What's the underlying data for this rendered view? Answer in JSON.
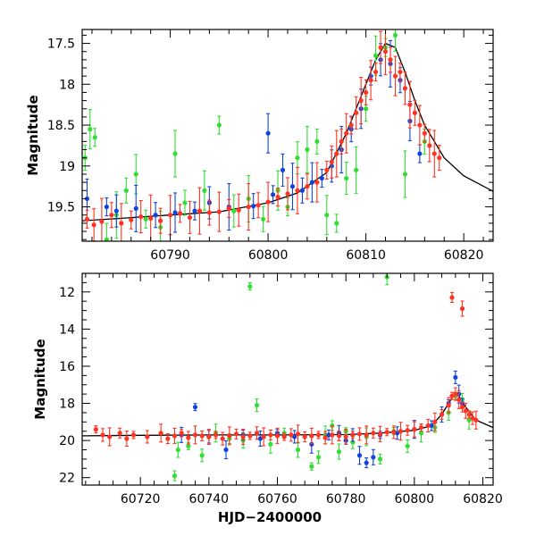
{
  "chart_data": [
    {
      "id": "top",
      "type": "scatter",
      "xlim": [
        60781,
        60823
      ],
      "ylim": [
        19.92,
        17.33
      ],
      "y_inverted": true,
      "ylabel": "Magnitude",
      "xlabel": "",
      "xticks": [
        60790,
        60800,
        60810,
        60820
      ],
      "yticks": [
        17.5,
        18,
        18.5,
        19,
        19.5
      ],
      "grid": false,
      "model_curve": [
        [
          60781,
          19.67
        ],
        [
          60785,
          19.64
        ],
        [
          60790,
          19.6
        ],
        [
          60795,
          19.56
        ],
        [
          60800,
          19.45
        ],
        [
          60803,
          19.33
        ],
        [
          60806,
          19.08
        ],
        [
          60808,
          18.6
        ],
        [
          60810,
          18.0
        ],
        [
          60811,
          17.7
        ],
        [
          60812,
          17.5
        ],
        [
          60813,
          17.55
        ],
        [
          60814,
          17.85
        ],
        [
          60815,
          18.2
        ],
        [
          60816,
          18.5
        ],
        [
          60818,
          18.9
        ],
        [
          60820,
          19.12
        ],
        [
          60823,
          19.31
        ]
      ],
      "series": [
        {
          "color": "#ff3322",
          "points": [
            [
              60781.5,
              19.65
            ],
            [
              60782.2,
              19.72
            ],
            [
              60783.0,
              19.68
            ],
            [
              60784.0,
              19.6
            ],
            [
              60785.0,
              19.7
            ],
            [
              60786.0,
              19.66
            ],
            [
              60787.0,
              19.62
            ],
            [
              60788.0,
              19.64
            ],
            [
              60789.0,
              19.67
            ],
            [
              60790.0,
              19.6
            ],
            [
              60791.0,
              19.58
            ],
            [
              60792.0,
              19.63
            ],
            [
              60793.0,
              19.55
            ],
            [
              60794.0,
              19.57
            ],
            [
              60795.0,
              19.56
            ],
            [
              60796.0,
              19.52
            ],
            [
              60797.0,
              19.54
            ],
            [
              60798.0,
              19.5
            ],
            [
              60799.0,
              19.48
            ],
            [
              60800.0,
              19.44
            ],
            [
              60801.0,
              19.38
            ],
            [
              60802.0,
              19.34
            ],
            [
              60803.0,
              19.3
            ],
            [
              60804.0,
              19.25
            ],
            [
              60805.0,
              19.2
            ],
            [
              60806.0,
              19.05
            ],
            [
              60806.5,
              18.95
            ],
            [
              60807.0,
              18.85
            ],
            [
              60807.5,
              18.7
            ],
            [
              60808.0,
              18.6
            ],
            [
              60808.5,
              18.5
            ],
            [
              60809.0,
              18.35
            ],
            [
              60809.5,
              18.2
            ],
            [
              60810.0,
              18.1
            ],
            [
              60810.5,
              17.95
            ],
            [
              60811.0,
              17.85
            ],
            [
              60811.5,
              17.55
            ],
            [
              60812.0,
              17.6
            ],
            [
              60812.5,
              17.7
            ],
            [
              60813.0,
              17.9
            ],
            [
              60813.5,
              17.85
            ],
            [
              60814.0,
              18.05
            ],
            [
              60814.5,
              18.25
            ],
            [
              60815.0,
              18.35
            ],
            [
              60815.5,
              18.5
            ],
            [
              60816.0,
              18.6
            ],
            [
              60816.5,
              18.75
            ],
            [
              60817.0,
              18.85
            ],
            [
              60817.5,
              18.9
            ]
          ]
        },
        {
          "color": "#1144dd",
          "points": [
            [
              60781.5,
              19.4
            ],
            [
              60783.5,
              19.5
            ],
            [
              60784.5,
              19.55
            ],
            [
              60786.5,
              19.52
            ],
            [
              60788.5,
              19.6
            ],
            [
              60790.5,
              19.57
            ],
            [
              60792.5,
              19.55
            ],
            [
              60794.0,
              19.45
            ],
            [
              60796.0,
              19.5
            ],
            [
              60798.5,
              19.49
            ],
            [
              60800.0,
              18.6
            ],
            [
              60800.5,
              19.35
            ],
            [
              60801.5,
              19.05
            ],
            [
              60802.5,
              19.25
            ],
            [
              60803.5,
              19.3
            ],
            [
              60804.5,
              19.2
            ],
            [
              60805.5,
              19.15
            ],
            [
              60806.5,
              19.0
            ],
            [
              60807.5,
              18.8
            ],
            [
              60808.5,
              18.55
            ],
            [
              60809.5,
              18.3
            ],
            [
              60810.5,
              17.9
            ],
            [
              60811.5,
              17.7
            ],
            [
              60812.5,
              17.75
            ],
            [
              60813.5,
              17.95
            ],
            [
              60814.5,
              18.45
            ],
            [
              60815.5,
              18.85
            ]
          ]
        },
        {
          "color": "#33dd33",
          "points": [
            [
              60781.3,
              18.9
            ],
            [
              60781.8,
              18.55
            ],
            [
              60782.3,
              18.65
            ],
            [
              60783.5,
              19.9
            ],
            [
              60784.5,
              19.6
            ],
            [
              60785.5,
              19.3
            ],
            [
              60786.5,
              19.1
            ],
            [
              60787.5,
              19.65
            ],
            [
              60789.0,
              19.75
            ],
            [
              60790.5,
              18.85
            ],
            [
              60791.5,
              19.45
            ],
            [
              60793.5,
              19.3
            ],
            [
              60795.0,
              18.5
            ],
            [
              60796.5,
              19.55
            ],
            [
              60798.0,
              19.4
            ],
            [
              60799.5,
              19.65
            ],
            [
              60801.0,
              19.3
            ],
            [
              60802.0,
              19.5
            ],
            [
              60803.0,
              18.9
            ],
            [
              60804.0,
              18.8
            ],
            [
              60805.0,
              18.7
            ],
            [
              60806.0,
              19.6
            ],
            [
              60807.0,
              19.7
            ],
            [
              60808.0,
              19.15
            ],
            [
              60809.0,
              19.05
            ],
            [
              60810.0,
              18.3
            ],
            [
              60811.0,
              17.65
            ],
            [
              60812.0,
              17.55
            ],
            [
              60813.0,
              17.4
            ],
            [
              60814.0,
              19.1
            ],
            [
              60816.0,
              18.7
            ]
          ]
        }
      ]
    },
    {
      "id": "bottom",
      "type": "scatter",
      "xlim": [
        60703,
        60823
      ],
      "ylim": [
        22.4,
        11
      ],
      "y_inverted": true,
      "ylabel": "Magnitude",
      "xlabel": "HJD−2400000",
      "xticks": [
        60720,
        60740,
        60760,
        60780,
        60800,
        60820
      ],
      "yticks": [
        12,
        14,
        16,
        18,
        20,
        22
      ],
      "grid": false,
      "model_curve": [
        [
          60703,
          19.75
        ],
        [
          60720,
          19.72
        ],
        [
          60740,
          19.7
        ],
        [
          60760,
          19.7
        ],
        [
          60780,
          19.68
        ],
        [
          60790,
          19.6
        ],
        [
          60800,
          19.45
        ],
        [
          60805,
          19.2
        ],
        [
          60808,
          18.6
        ],
        [
          60811,
          17.7
        ],
        [
          60812,
          17.5
        ],
        [
          60813,
          17.6
        ],
        [
          60815,
          18.2
        ],
        [
          60818,
          18.9
        ],
        [
          60823,
          19.3
        ]
      ],
      "series": [
        {
          "color": "#ff3322",
          "points": [
            [
              60707,
              19.4
            ],
            [
              60709,
              19.7
            ],
            [
              60711,
              19.8
            ],
            [
              60714,
              19.6
            ],
            [
              60716,
              19.9
            ],
            [
              60718,
              19.7
            ],
            [
              60722,
              19.8
            ],
            [
              60726,
              19.6
            ],
            [
              60728,
              19.9
            ],
            [
              60730,
              19.75
            ],
            [
              60732,
              19.6
            ],
            [
              60734,
              19.85
            ],
            [
              60736,
              19.7
            ],
            [
              60738,
              19.75
            ],
            [
              60740,
              19.8
            ],
            [
              60742,
              19.7
            ],
            [
              60744,
              19.9
            ],
            [
              60746,
              19.75
            ],
            [
              60748,
              19.65
            ],
            [
              60750,
              19.8
            ],
            [
              60752,
              19.75
            ],
            [
              60754,
              19.6
            ],
            [
              60756,
              19.8
            ],
            [
              60758,
              19.7
            ],
            [
              60760,
              19.75
            ],
            [
              60762,
              19.8
            ],
            [
              60764,
              19.7
            ],
            [
              60766,
              19.65
            ],
            [
              60768,
              19.8
            ],
            [
              60770,
              19.75
            ],
            [
              60772,
              19.7
            ],
            [
              60774,
              19.85
            ],
            [
              60776,
              19.7
            ],
            [
              60778,
              19.75
            ],
            [
              60780,
              19.8
            ],
            [
              60782,
              19.7
            ],
            [
              60784,
              19.65
            ],
            [
              60786,
              19.7
            ],
            [
              60788,
              19.6
            ],
            [
              60790,
              19.65
            ],
            [
              60792,
              19.55
            ],
            [
              60794,
              19.55
            ],
            [
              60796,
              19.5
            ],
            [
              60798,
              19.45
            ],
            [
              60800,
              19.4
            ],
            [
              60802,
              19.3
            ],
            [
              60804,
              19.2
            ],
            [
              60806,
              19.0
            ],
            [
              60808,
              18.6
            ],
            [
              60810,
              18.1
            ],
            [
              60811,
              17.6
            ],
            [
              60812,
              17.5
            ],
            [
              60813,
              17.8
            ],
            [
              60814,
              18.2
            ],
            [
              60815,
              18.4
            ],
            [
              60816,
              18.6
            ],
            [
              60817,
              18.8
            ],
            [
              60818,
              18.9
            ],
            [
              60811,
              12.3
            ],
            [
              60814,
              12.9
            ]
          ]
        },
        {
          "color": "#1144dd",
          "points": [
            [
              60732,
              19.7
            ],
            [
              60736,
              18.2
            ],
            [
              60740,
              19.8
            ],
            [
              60745,
              20.5
            ],
            [
              60750,
              19.7
            ],
            [
              60755,
              19.9
            ],
            [
              60760,
              19.6
            ],
            [
              60765,
              19.8
            ],
            [
              60770,
              20.2
            ],
            [
              60775,
              19.7
            ],
            [
              60778,
              19.6
            ],
            [
              60780,
              20.0
            ],
            [
              60782,
              19.7
            ],
            [
              60784,
              20.8
            ],
            [
              60786,
              21.2
            ],
            [
              60788,
              20.9
            ],
            [
              60790,
              19.7
            ],
            [
              60795,
              19.6
            ],
            [
              60800,
              19.4
            ],
            [
              60805,
              19.2
            ],
            [
              60808,
              18.6
            ],
            [
              60810,
              18.0
            ],
            [
              60812,
              16.6
            ],
            [
              60813,
              17.5
            ],
            [
              60814,
              18.0
            ]
          ]
        },
        {
          "color": "#33dd33",
          "points": [
            [
              60730,
              21.9
            ],
            [
              60731,
              20.5
            ],
            [
              60734,
              20.3
            ],
            [
              60738,
              20.8
            ],
            [
              60742,
              19.6
            ],
            [
              60746,
              19.9
            ],
            [
              60750,
              20.0
            ],
            [
              60752,
              11.7
            ],
            [
              60754,
              18.1
            ],
            [
              60758,
              20.2
            ],
            [
              60762,
              19.6
            ],
            [
              60766,
              20.5
            ],
            [
              60770,
              21.4
            ],
            [
              60772,
              20.9
            ],
            [
              60774,
              19.7
            ],
            [
              60776,
              19.2
            ],
            [
              60778,
              20.6
            ],
            [
              60780,
              19.5
            ],
            [
              60782,
              20.1
            ],
            [
              60786,
              19.8
            ],
            [
              60790,
              21.0
            ],
            [
              60792,
              11.2
            ],
            [
              60794,
              19.5
            ],
            [
              60798,
              20.3
            ],
            [
              60802,
              19.6
            ],
            [
              60806,
              19.3
            ],
            [
              60810,
              18.5
            ],
            [
              60812,
              17.6
            ],
            [
              60814,
              17.8
            ],
            [
              60816,
              18.9
            ]
          ]
        }
      ]
    }
  ]
}
